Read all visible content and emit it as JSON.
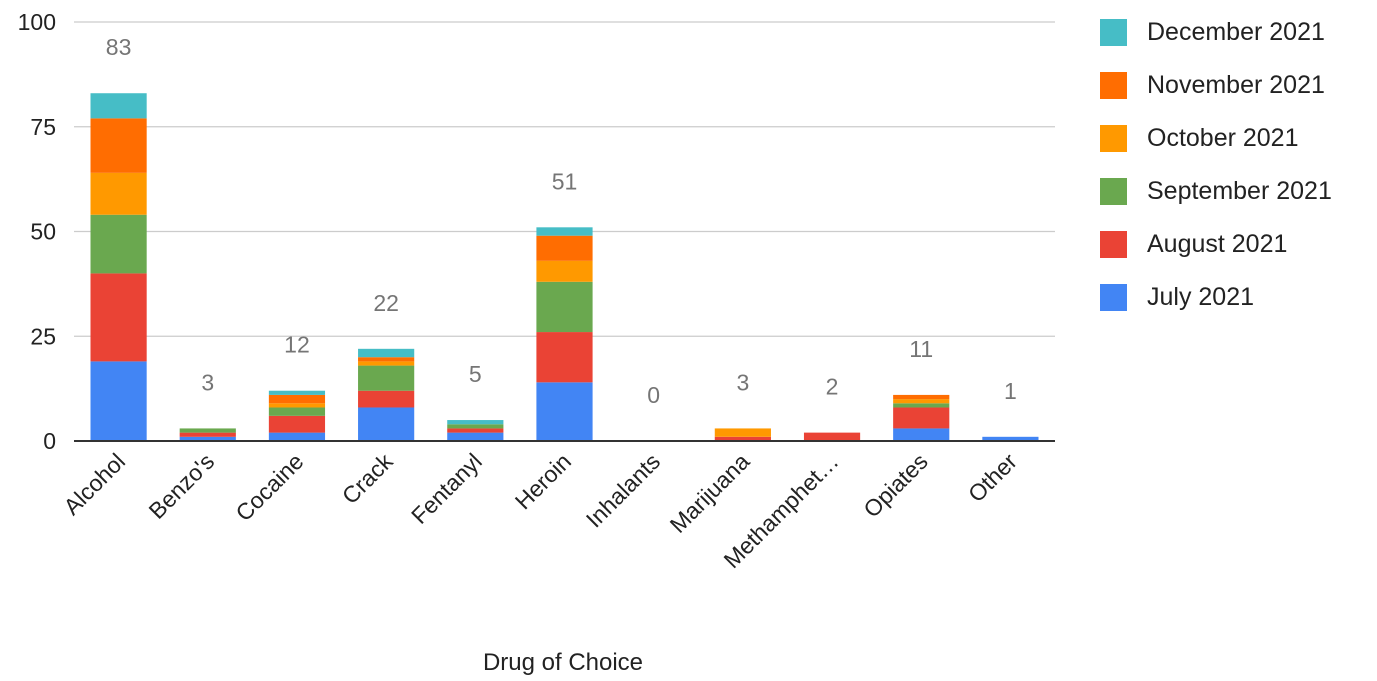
{
  "chart_data": {
    "type": "bar",
    "stacked": true,
    "xlabel": "Drug of Choice",
    "ylabel": "",
    "ylim": [
      0,
      100
    ],
    "yticks": [
      0,
      25,
      50,
      75,
      100
    ],
    "grid": true,
    "legend_position": "right",
    "categories": [
      "Alcohol",
      "Benzo's",
      "Cocaine",
      "Crack",
      "Fentanyl",
      "Heroin",
      "Inhalants",
      "Marijuana",
      "Methamphet…",
      "Opiates",
      "Other"
    ],
    "totals": [
      83,
      3,
      12,
      22,
      5,
      51,
      0,
      3,
      2,
      11,
      1
    ],
    "series": [
      {
        "name": "July 2021",
        "color": "#4285f4",
        "values": [
          19,
          1,
          2,
          8,
          2,
          14,
          0,
          0,
          0,
          3,
          1
        ]
      },
      {
        "name": "August 2021",
        "color": "#ea4335",
        "values": [
          21,
          1,
          4,
          4,
          1,
          12,
          0,
          1,
          2,
          5,
          0
        ]
      },
      {
        "name": "September 2021",
        "color": "#6aa84f",
        "values": [
          14,
          1,
          2,
          6,
          1,
          12,
          0,
          0,
          0,
          1,
          0
        ]
      },
      {
        "name": "October 2021",
        "color": "#ff9900",
        "values": [
          10,
          0,
          1,
          1,
          0,
          5,
          0,
          2,
          0,
          1,
          0
        ]
      },
      {
        "name": "November 2021",
        "color": "#ff6d01",
        "values": [
          13,
          0,
          2,
          1,
          0,
          6,
          0,
          0,
          0,
          1,
          0
        ]
      },
      {
        "name": "December 2021",
        "color": "#46bdc6",
        "values": [
          6,
          0,
          1,
          2,
          1,
          2,
          0,
          0,
          0,
          0,
          0
        ]
      }
    ],
    "legend": [
      "December 2021",
      "November 2021",
      "October 2021",
      "September 2021",
      "August 2021",
      "July 2021"
    ]
  }
}
